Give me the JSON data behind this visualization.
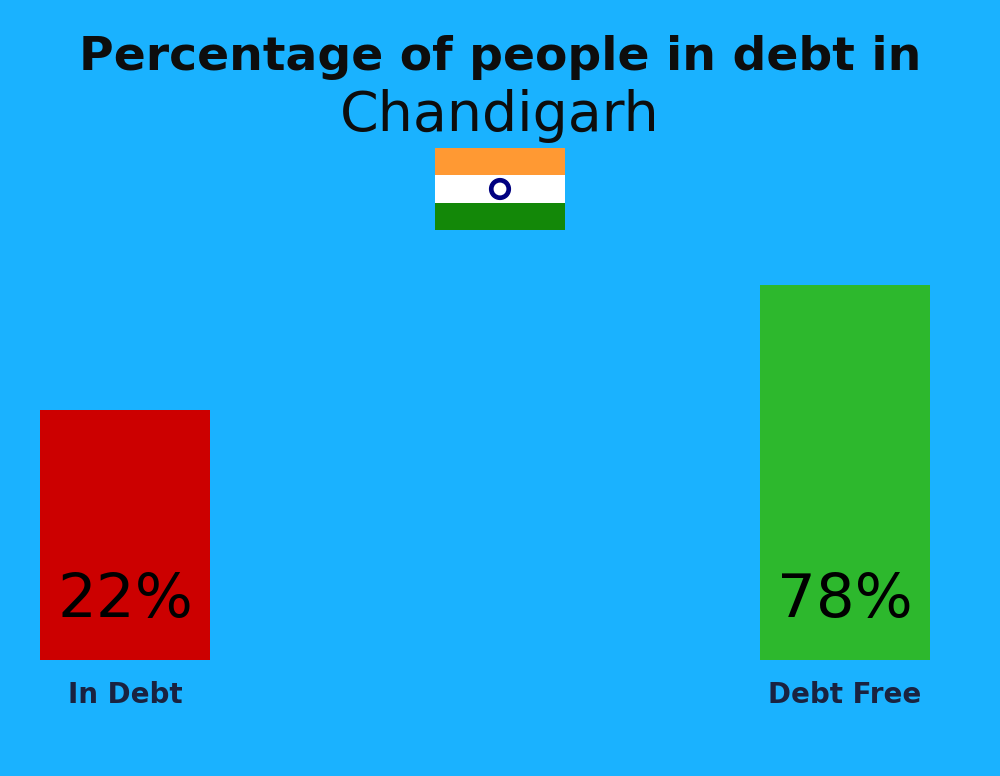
{
  "title_line1": "Percentage of people in debt in",
  "title_line2": "Chandigarh",
  "title_color": "#0d0d0d",
  "title_fontsize1": 34,
  "title_fontsize2": 40,
  "background_color": "#1ab2ff",
  "bar1_label": "22%",
  "bar1_color": "#cc0000",
  "bar1_text": "In Debt",
  "bar2_label": "78%",
  "bar2_color": "#2db82d",
  "bar2_text": "Debt Free",
  "label_color": "#1a2340",
  "label_fontsize": 20,
  "pct_fontsize": 44,
  "pct_color": "#000000",
  "flag_saffron": "#FF9933",
  "flag_white": "#FFFFFF",
  "flag_green": "#138808",
  "flag_chakra": "#000080"
}
